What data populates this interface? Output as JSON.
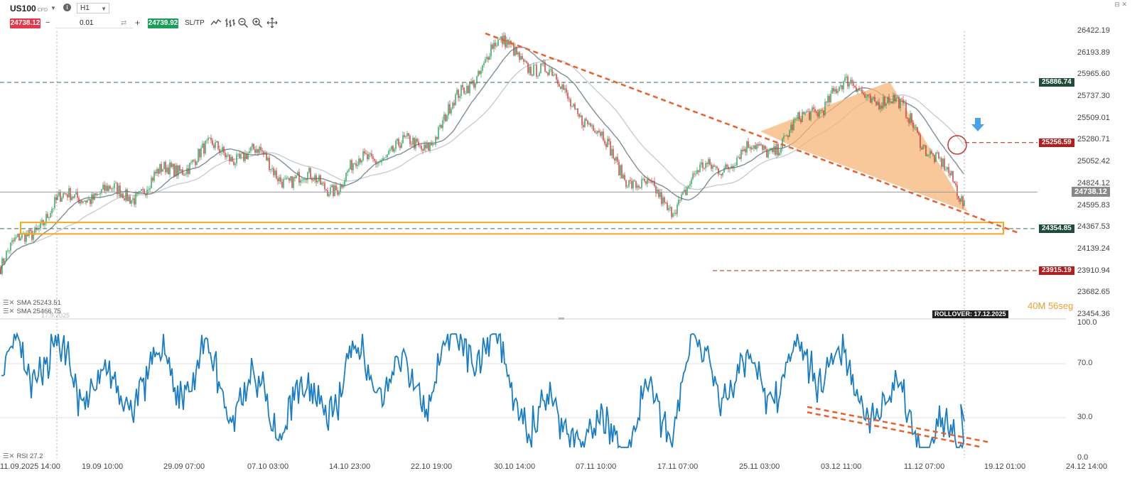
{
  "toolbar": {
    "symbol": "US100",
    "symbol_type": "CFD",
    "timeframe": "H1",
    "sell_price": "24738.12",
    "buy_price": "24739.92",
    "volume": "0.01",
    "minus": "−",
    "plus": "+",
    "sltp": "SL/TP",
    "tools": [
      "line-chart-icon",
      "bar-chart-icon",
      "zoom-out-icon",
      "zoom-in-icon",
      "crosshair-icon"
    ],
    "window_controls": "⊟ ✕"
  },
  "price_axis": {
    "ticks": [
      "26422.19",
      "26193.89",
      "25965.60",
      "25737.30",
      "25509.01",
      "25280.71",
      "25052.42",
      "24824.12",
      "24595.83",
      "24367.53",
      "24139.24",
      "23910.94",
      "23682.65",
      "23454.36"
    ]
  },
  "price_tags": [
    {
      "value": "25886.74",
      "color": "#1f4d3a"
    },
    {
      "value": "25256.59",
      "color": "#b71c1c"
    },
    {
      "value": "24738.12",
      "color": "#888888"
    },
    {
      "value": "24354.85",
      "color": "#1f4d3a"
    },
    {
      "value": "23915.19",
      "color": "#b71c1c"
    }
  ],
  "rsi_axis": {
    "ticks": [
      "100.0",
      "70.0",
      "30.0",
      "0.0"
    ]
  },
  "time_axis": {
    "ticks": [
      "11.09.2025 14:00",
      "19.09 10:00",
      "29.09 07:00",
      "07.10 03:00",
      "14.10 23:00",
      "22.10 19:00",
      "30.10 14:00",
      "07.11 10:00",
      "17.11 07:00",
      "25.11 03:00",
      "03.12 11:00",
      "11.12 07:00",
      "19.12 01:00",
      "24.12 14:00"
    ]
  },
  "countdown": {
    "minutes": "40",
    "m_label": "M",
    "seconds": "56",
    "s_label": "seg"
  },
  "rollover": "ROLLOVER: 17.12.2025",
  "indicators": {
    "sma1": "SMA 25243.51",
    "sma2": "SMA 25466.75",
    "rsi": "RSI 27.2",
    "faded_date": "17.9.2025"
  },
  "colors": {
    "trendline": "#e8602c",
    "support_box": "#f2a81d",
    "triangle_fill": "#f5b678",
    "rsi_line": "#1a7dc4",
    "sma_dark": "#7d8f98",
    "sma_light": "#c8cdd0",
    "bull": "#2e9e5b",
    "bear": "#c23a3a"
  },
  "chart_data": {
    "type": "candlestick",
    "price_ylim": [
      23454.36,
      26422.19
    ],
    "horizontal_levels": [
      25886.74,
      25256.59,
      24738.12,
      24354.85,
      23915.19
    ],
    "support_zone": [
      24300,
      24420
    ],
    "price_path": [
      [
        "11.09.2025 14:00",
        23950
      ],
      [
        "19.09 10:00",
        24750
      ],
      [
        "29.09 07:00",
        24950
      ],
      [
        "07.10 03:00",
        25150
      ],
      [
        "14.10 23:00",
        24800
      ],
      [
        "22.10 19:00",
        25250
      ],
      [
        "30.10 14:00",
        26300
      ],
      [
        "07.11 10:00",
        25550
      ],
      [
        "17.11 07:00",
        24550
      ],
      [
        "25.11 03:00",
        25150
      ],
      [
        "03.12 11:00",
        25780
      ],
      [
        "11.12 07:00",
        25500
      ],
      [
        "current",
        24738.12
      ]
    ],
    "rsi_ylim": [
      0,
      100
    ],
    "rsi_levels": [
      70,
      30
    ],
    "rsi_current": 27.2
  }
}
